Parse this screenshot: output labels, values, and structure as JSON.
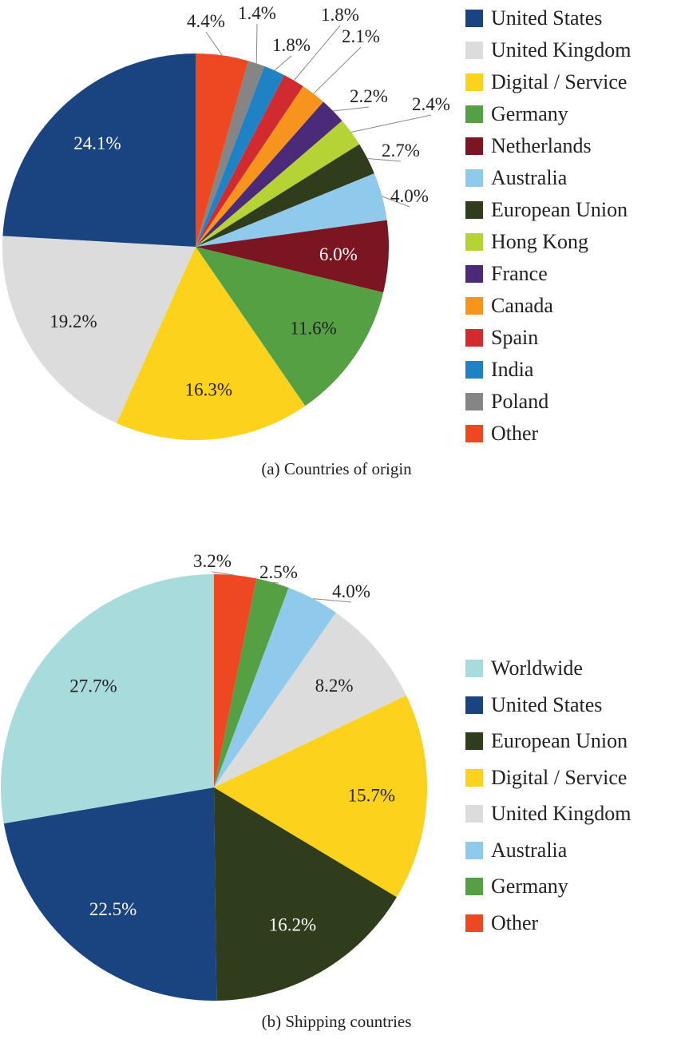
{
  "chart_data": [
    {
      "type": "pie",
      "title": "(a) Countries of origin",
      "legend_position": "right",
      "slices": [
        {
          "name": "Other",
          "value": 4.4,
          "label": "4.4%",
          "color": "#ee4823"
        },
        {
          "name": "Poland",
          "value": 1.4,
          "label": "1.4%",
          "color": "#858585"
        },
        {
          "name": "India",
          "value": 1.8,
          "label": "1.8%",
          "color": "#1f82c4"
        },
        {
          "name": "Spain",
          "value": 1.8,
          "label": "1.8%",
          "color": "#d12a2f"
        },
        {
          "name": "Canada",
          "value": 2.1,
          "label": "2.1%",
          "color": "#f7941d"
        },
        {
          "name": "France",
          "value": 2.2,
          "label": "2.2%",
          "color": "#4b2a7a"
        },
        {
          "name": "Hong Kong",
          "value": 2.4,
          "label": "2.4%",
          "color": "#b5d334"
        },
        {
          "name": "European Union",
          "value": 2.7,
          "label": "2.7%",
          "color": "#2f3d1c"
        },
        {
          "name": "Australia",
          "value": 4.0,
          "label": "4.0%",
          "color": "#8fc9ec"
        },
        {
          "name": "Netherlands",
          "value": 6.0,
          "label": "6.0%",
          "color": "#7b1522"
        },
        {
          "name": "Germany",
          "value": 11.6,
          "label": "11.6%",
          "color": "#55a043"
        },
        {
          "name": "Digital / Service",
          "value": 16.3,
          "label": "16.3%",
          "color": "#fcd21d"
        },
        {
          "name": "United Kingdom",
          "value": 19.2,
          "label": "19.2%",
          "color": "#dcdcdc"
        },
        {
          "name": "United States",
          "value": 24.1,
          "label": "24.1%",
          "color": "#1a4480"
        }
      ],
      "legend": [
        "United States",
        "United Kingdom",
        "Digital / Service",
        "Germany",
        "Netherlands",
        "Australia",
        "European Union",
        "Hong Kong",
        "France",
        "Canada",
        "Spain",
        "India",
        "Poland",
        "Other"
      ]
    },
    {
      "type": "pie",
      "title": "(b) Shipping countries",
      "legend_position": "right",
      "slices": [
        {
          "name": "Other",
          "value": 3.2,
          "label": "3.2%",
          "color": "#ee4823"
        },
        {
          "name": "Germany",
          "value": 2.5,
          "label": "2.5%",
          "color": "#55a043"
        },
        {
          "name": "Australia",
          "value": 4.0,
          "label": "4.0%",
          "color": "#8fc9ec"
        },
        {
          "name": "United Kingdom",
          "value": 8.2,
          "label": "8.2%",
          "color": "#dcdcdc"
        },
        {
          "name": "Digital / Service",
          "value": 15.7,
          "label": "15.7%",
          "color": "#fcd21d"
        },
        {
          "name": "European Union",
          "value": 16.2,
          "label": "16.2%",
          "color": "#2f3d1c"
        },
        {
          "name": "United States",
          "value": 22.5,
          "label": "22.5%",
          "color": "#1a4480"
        },
        {
          "name": "Worldwide",
          "value": 27.7,
          "label": "27.7%",
          "color": "#a8dcdc"
        }
      ],
      "legend": [
        "Worldwide",
        "United States",
        "European Union",
        "Digital / Service",
        "United Kingdom",
        "Australia",
        "Germany",
        "Other"
      ]
    }
  ]
}
